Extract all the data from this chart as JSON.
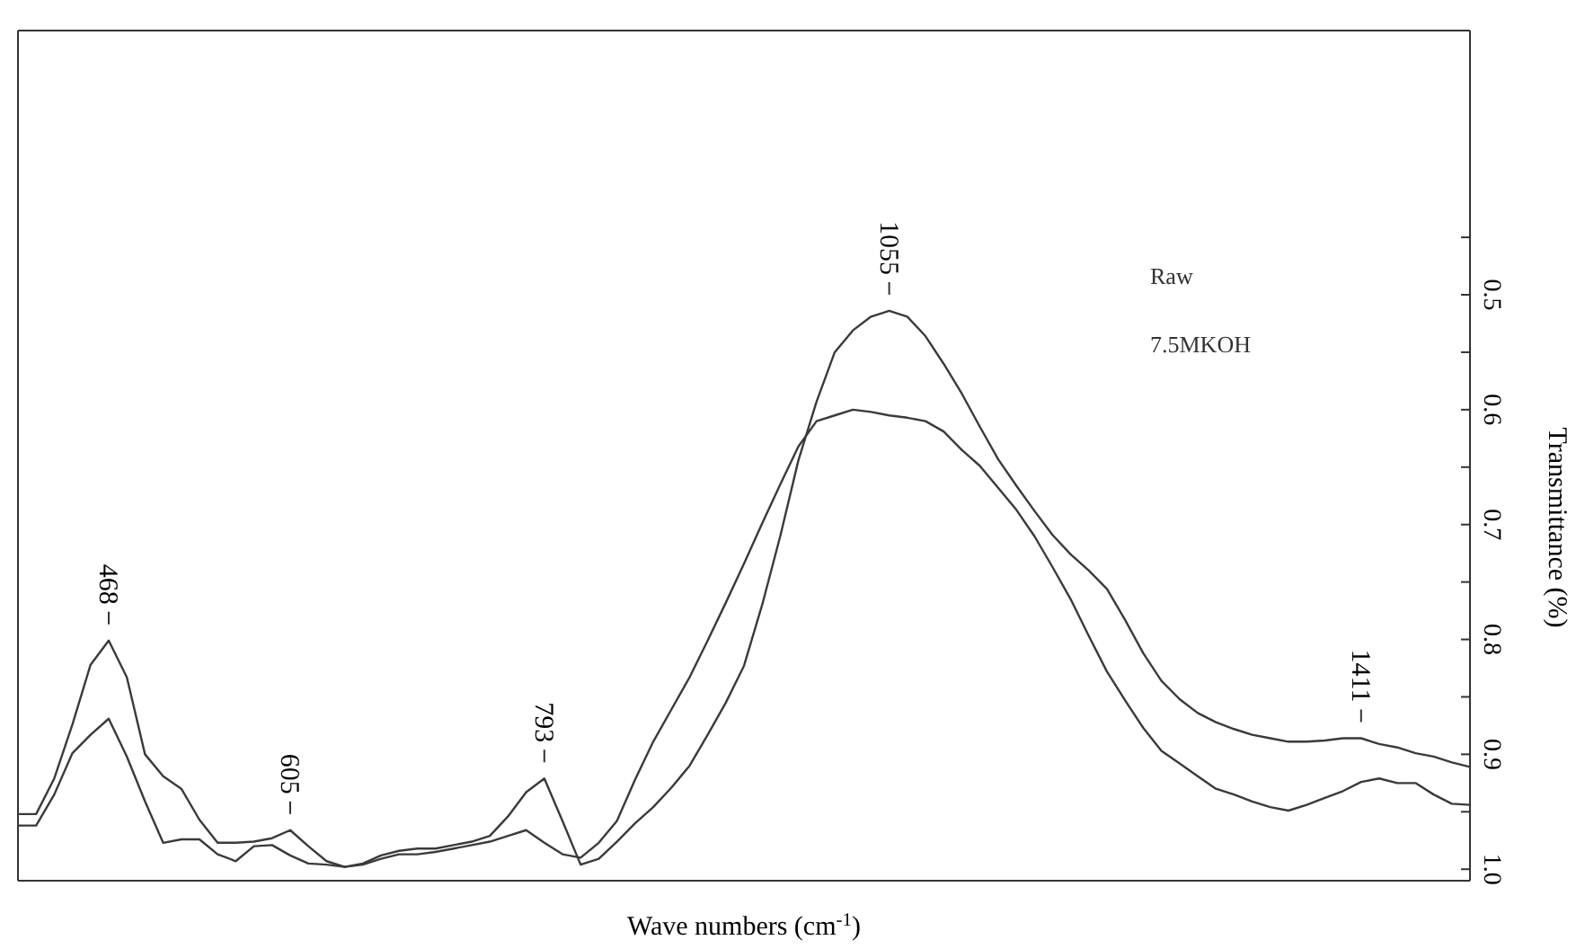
{
  "chart_data": {
    "type": "line",
    "xlabel": "Wave numbers (cm$^{-1}$)",
    "ylabel": "Transmittance (%)",
    "categories": [
      null,
      null,
      null,
      null,
      null,
      null,
      null,
      null,
      null,
      null,
      null,
      null,
      null,
      null,
      null,
      null,
      null,
      null,
      null,
      null,
      null,
      null,
      null,
      null,
      null,
      null,
      null,
      null,
      null,
      null,
      null,
      null,
      null,
      null,
      null,
      null,
      null,
      null,
      null,
      null,
      null,
      null,
      null,
      null,
      null,
      null,
      null,
      null,
      null,
      null,
      null,
      null,
      null,
      null,
      null,
      null,
      null,
      null,
      null,
      null,
      null,
      null,
      null,
      null,
      null,
      null,
      null,
      null,
      null,
      null,
      null,
      null,
      null,
      null,
      null,
      null,
      null,
      null,
      null,
      null,
      null
    ],
    "ylim": [
      1.01,
      0.27
    ],
    "yticks": [
      {
        "value": 0.45,
        "label": null
      },
      0.5,
      {
        "value": 0.55,
        "label": null
      },
      0.6,
      {
        "value": 0.65,
        "label": null
      },
      0.7,
      {
        "value": 0.75,
        "label": null
      },
      0.8,
      {
        "value": 0.85,
        "label": null
      },
      0.9,
      {
        "value": 0.95,
        "label": null
      },
      {
        "value": 1,
        "label": "1.0"
      }
    ],
    "tick_labels": "y",
    "marker": "none",
    "line_style": "solid",
    "series": [
      {
        "color": "#3a3a3a",
        "values": [
          0.962,
          0.962,
          0.935,
          0.899,
          0.883,
          0.869,
          0.902,
          0.941,
          0.977,
          0.974,
          0.974,
          0.987,
          0.993,
          0.98,
          0.979,
          0.988,
          0.995,
          0.996,
          0.998,
          0.996,
          0.991,
          0.987,
          0.987,
          0.985,
          0.982,
          0.979,
          0.976,
          0.971,
          0.966,
          0.977,
          0.987,
          0.99,
          0.977,
          0.958,
          0.922,
          0.889,
          0.861,
          0.833,
          0.801,
          0.768,
          0.734,
          0.699,
          0.665,
          0.632,
          0.61,
          0.605,
          0.6,
          0.602,
          0.605,
          0.607,
          0.61,
          0.619,
          0.635,
          0.649,
          0.668,
          0.687,
          0.71,
          0.737,
          0.765,
          0.797,
          0.828,
          0.853,
          0.877,
          0.897,
          0.908,
          0.919,
          0.93,
          0.935,
          0.941,
          0.946,
          0.949,
          0.944,
          0.938,
          0.932,
          0.924,
          0.921,
          0.925,
          0.925,
          0.935,
          0.943,
          0.944
        ]
      },
      {
        "color": "#3a3a3a",
        "values": [
          0.952,
          0.952,
          0.921,
          0.874,
          0.822,
          0.801,
          0.833,
          0.9,
          0.919,
          0.93,
          0.957,
          0.977,
          0.977,
          0.976,
          0.973,
          0.966,
          0.98,
          0.993,
          0.998,
          0.995,
          0.988,
          0.984,
          0.982,
          0.982,
          0.979,
          0.976,
          0.971,
          0.954,
          0.933,
          0.921,
          0.958,
          0.996,
          0.991,
          0.976,
          0.96,
          0.946,
          0.929,
          0.91,
          0.883,
          0.855,
          0.823,
          0.77,
          0.71,
          0.644,
          0.593,
          0.55,
          0.531,
          0.519,
          0.514,
          0.519,
          0.536,
          0.56,
          0.586,
          0.615,
          0.643,
          0.666,
          0.688,
          0.709,
          0.726,
          0.74,
          0.756,
          0.783,
          0.812,
          0.836,
          0.852,
          0.864,
          0.872,
          0.878,
          0.883,
          0.886,
          0.889,
          0.889,
          0.888,
          0.886,
          0.886,
          0.891,
          0.894,
          0.899,
          0.902,
          0.907,
          0.911
        ]
      }
    ],
    "annotations": [
      "468",
      "605",
      "793",
      "1055",
      "1411",
      "Raw",
      "7.5MKOH"
    ]
  }
}
